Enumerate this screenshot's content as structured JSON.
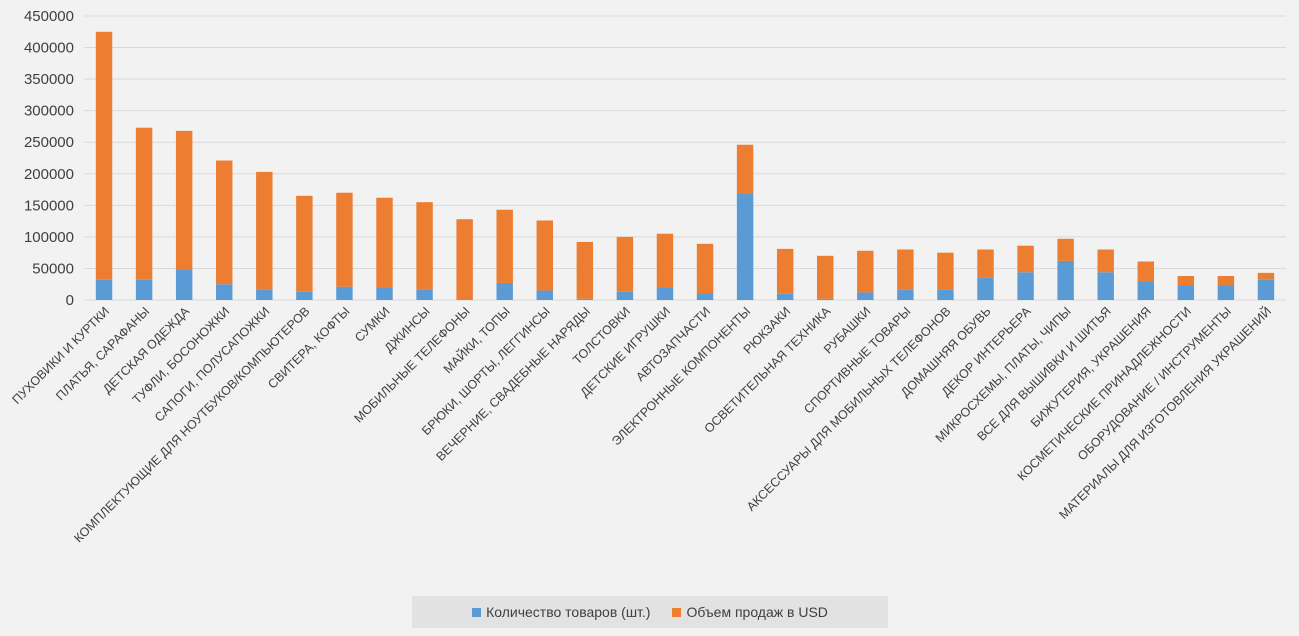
{
  "chart_data": {
    "type": "bar",
    "stacked": true,
    "title": "",
    "xlabel": "",
    "ylabel": "",
    "ylim": [
      0,
      450000
    ],
    "yticks": [
      0,
      50000,
      100000,
      150000,
      200000,
      250000,
      300000,
      350000,
      400000,
      450000
    ],
    "grid": true,
    "legend_position": "bottom",
    "categories": [
      "ПУХОВИКИ И КУРТКИ",
      "ПЛАТЬЯ, САРАФАНЫ",
      "ДЕТСКАЯ ОДЕЖДА",
      "ТУФЛИ, БОСОНОЖКИ",
      "САПОГИ, ПОЛУСАПОЖКИ",
      "КОМПЛЕКТУЮЩИЕ ДЛЯ НОУТБУКОВ/КОМПЬЮТЕРОВ",
      "СВИТЕРА, КОФТЫ",
      "СУМКИ",
      "ДЖИНСЫ",
      "МОБИЛЬНЫЕ ТЕЛЕФОНЫ",
      "МАЙКИ, ТОПЫ",
      "БРЮКИ, ШОРТЫ, ЛЕГГИНСЫ",
      "ВЕЧЕРНИЕ, СВАДЕБНЫЕ НАРЯДЫ",
      "ТОЛСТОВКИ",
      "ДЕТСКИЕ ИГРУШКИ",
      "АВТОЗАПЧАСТИ",
      "ЭЛЕКТРОННЫЕ КОМПОНЕНТЫ",
      "РЮКЗАКИ",
      "ОСВЕТИТЕЛЬНАЯ ТЕХНИКА",
      "РУБАШКИ",
      "СПОРТИВНЫЕ ТОВАРЫ",
      "АКСЕССУАРЫ ДЛЯ МОБИЛЬНЫХ ТЕЛЕФОНОВ",
      "ДОМАШНЯЯ ОБУВЬ",
      "ДЕКОР ИНТЕРЬЕРА",
      "МИКРОСХЕМЫ, ПЛАТЫ, ЧИПЫ",
      "ВСЕ ДЛЯ ВЫШИВКИ И ШИТЬЯ",
      "БИЖУТЕРИЯ, УКРАШЕНИЯ",
      "КОСМЕТИЧЕСКИЕ ПРИНАДЛЕЖНОСТИ",
      "ОБОРУДОВАНИЕ / ИНСТРУМЕНТЫ",
      "МАТЕРИАЛЫ ДЛЯ ИЗГОТОВЛЕНИЯ УКРАШЕНИЙ"
    ],
    "series": [
      {
        "name": "Количество товаров (шт.)",
        "color": "#5b9bd5",
        "values": [
          32000,
          32000,
          49000,
          25000,
          17000,
          13000,
          21000,
          19000,
          16000,
          0,
          27000,
          15000,
          2000,
          13000,
          19000,
          11000,
          168000,
          10000,
          2000,
          12000,
          17000,
          17000,
          36000,
          44000,
          62000,
          44000,
          30000,
          23000,
          23000,
          32000
        ]
      },
      {
        "name": "Объем продаж в USD",
        "color": "#ed7d31",
        "values": [
          393000,
          241000,
          219000,
          196000,
          186000,
          152000,
          149000,
          143000,
          139000,
          128000,
          116000,
          111000,
          90000,
          87000,
          86000,
          78000,
          78000,
          71000,
          68000,
          66000,
          63000,
          58000,
          44000,
          42000,
          35000,
          36000,
          31000,
          15000,
          15000,
          11000
        ]
      }
    ]
  },
  "colors": {
    "background": "#f2f2f2",
    "grid": "#d9d9d9",
    "axis_text": "#595959",
    "legend_bg": "#e2e2e2"
  }
}
